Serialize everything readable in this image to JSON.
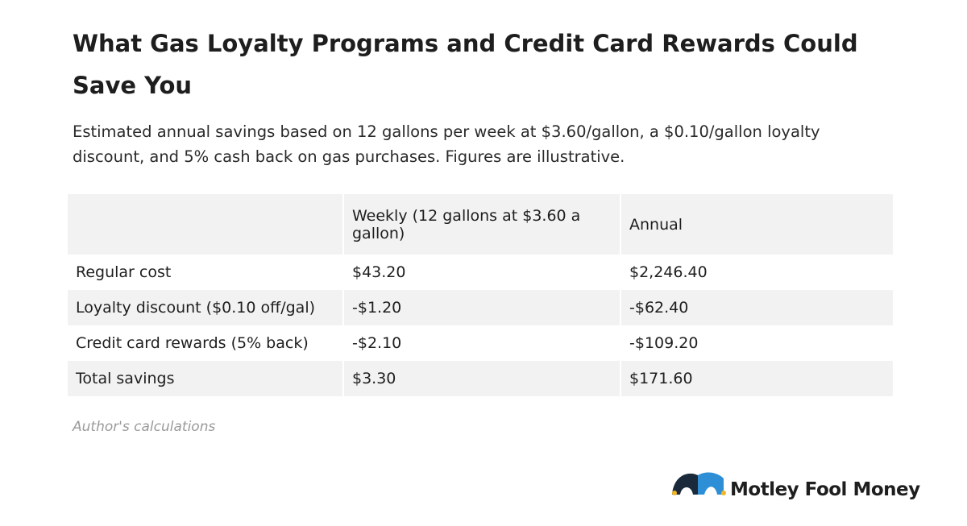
{
  "header": {
    "title": "What Gas Loyalty Programs and Credit Card Rewards Could Save You",
    "subtitle": "Estimated annual savings based on 12 gallons per week at $3.60/gallon, a $0.10/gallon loyalty discount, and 5% cash back on gas purchases. Figures are illustrative."
  },
  "table": {
    "columns": [
      "Weekly (12 gallons at $3.60 a gallon)",
      "Annual"
    ],
    "rows": [
      [
        "Regular cost",
        "$43.20",
        "$2,246.40"
      ],
      [
        "Loyalty discount ($0.10 off/gal)",
        "-$1.20",
        "-$62.40"
      ],
      [
        "Credit card rewards (5% back)",
        "-$2.10",
        "-$109.20"
      ],
      [
        "Total savings",
        "$3.30",
        "$171.60"
      ]
    ]
  },
  "source": "Author's calculations",
  "logo": {
    "text": "Motley Fool Money"
  }
}
